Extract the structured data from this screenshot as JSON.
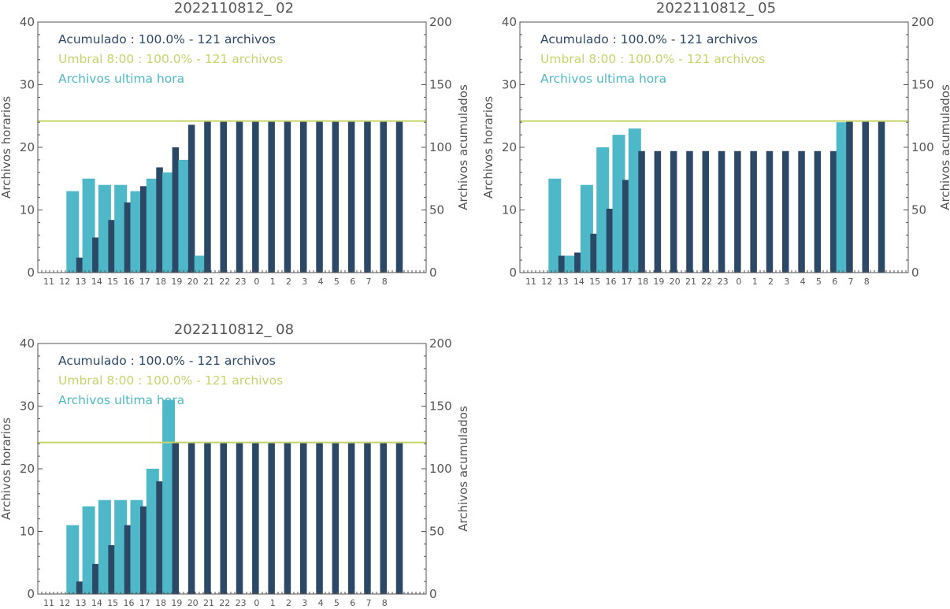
{
  "colors": {
    "hourly": "#4fb8c8",
    "accumulated": "#2b4866",
    "threshold": "#c8d46a",
    "axis": "#555555"
  },
  "chart_data": [
    {
      "type": "bar",
      "title": "2022110812_ 02",
      "ylabel_left": "Archivos horarios",
      "ylabel_right": "Archivos acumulados",
      "ylim_left": [
        0,
        40
      ],
      "ylim_right": [
        0,
        200
      ],
      "yticks_left": [
        "0",
        "10",
        "20",
        "30",
        "40"
      ],
      "yticks_right": [
        "0",
        "50",
        "100",
        "150",
        "200"
      ],
      "categories": [
        "11",
        "12",
        "13",
        "14",
        "15",
        "16",
        "17",
        "18",
        "19",
        "20",
        "21",
        "22",
        "23",
        "0",
        "1",
        "2",
        "3",
        "4",
        "5",
        "6",
        "7",
        "8"
      ],
      "legend": [
        {
          "label": "Acumulado : 100.0% - 121 archivos",
          "color": "accumulated"
        },
        {
          "label": "Umbral 8:00 : 100.0% - 121 archivos",
          "color": "threshold"
        },
        {
          "label": "Archivos ultima hora",
          "color": "hourly"
        }
      ],
      "threshold": 121,
      "series": [
        {
          "name": "Archivos ultima hora",
          "axis": "left",
          "values": [
            0,
            13,
            15,
            14,
            14,
            13,
            15,
            16,
            18,
            2.7,
            0,
            0,
            0,
            0,
            0,
            0,
            0,
            0,
            0,
            0,
            0,
            0
          ]
        },
        {
          "name": "Acumulado",
          "axis": "right",
          "values": [
            0,
            12,
            28,
            42,
            56,
            69,
            84,
            100,
            118,
            121,
            121,
            121,
            121,
            121,
            121,
            121,
            121,
            121,
            121,
            121,
            121,
            121
          ]
        }
      ]
    },
    {
      "type": "bar",
      "title": "2022110812_ 05",
      "ylabel_left": "Archivos horarios",
      "ylabel_right": "Archivos acumulados",
      "ylim_left": [
        0,
        40
      ],
      "ylim_right": [
        0,
        200
      ],
      "yticks_left": [
        "0",
        "10",
        "20",
        "30",
        "40"
      ],
      "yticks_right": [
        "0",
        "50",
        "100",
        "150",
        "200"
      ],
      "categories": [
        "11",
        "12",
        "13",
        "14",
        "15",
        "16",
        "17",
        "18",
        "19",
        "20",
        "21",
        "22",
        "23",
        "0",
        "1",
        "2",
        "3",
        "4",
        "5",
        "6",
        "7",
        "8"
      ],
      "legend": [
        {
          "label": "Acumulado : 100.0% - 121 archivos",
          "color": "accumulated"
        },
        {
          "label": "Umbral 8:00 : 100.0% - 121 archivos",
          "color": "threshold"
        },
        {
          "label": "Archivos ultima hora",
          "color": "hourly"
        }
      ],
      "threshold": 121,
      "series": [
        {
          "name": "Archivos ultima hora",
          "axis": "left",
          "values": [
            0,
            15,
            2.7,
            14,
            20,
            22,
            23,
            0,
            0,
            0,
            0,
            0,
            0,
            0,
            0,
            0,
            0,
            0,
            0,
            24,
            0,
            0
          ]
        },
        {
          "name": "Acumulado",
          "axis": "right",
          "values": [
            0,
            13.5,
            16,
            31,
            51,
            74,
            97,
            97,
            97,
            97,
            97,
            97,
            97,
            97,
            97,
            97,
            97,
            97,
            97,
            121,
            121,
            121
          ]
        }
      ]
    },
    {
      "type": "bar",
      "title": "2022110812_ 08",
      "ylabel_left": "Archivos horarios",
      "ylabel_right": "Archivos acumulados",
      "ylim_left": [
        0,
        40
      ],
      "ylim_right": [
        0,
        200
      ],
      "yticks_left": [
        "0",
        "10",
        "20",
        "30",
        "40"
      ],
      "yticks_right": [
        "0",
        "50",
        "100",
        "150",
        "200"
      ],
      "categories": [
        "11",
        "12",
        "13",
        "14",
        "15",
        "16",
        "17",
        "18",
        "19",
        "20",
        "21",
        "22",
        "23",
        "0",
        "1",
        "2",
        "3",
        "4",
        "5",
        "6",
        "7",
        "8"
      ],
      "legend": [
        {
          "label": "Acumulado : 100.0% - 121 archivos",
          "color": "accumulated"
        },
        {
          "label": "Umbral 8:00 : 100.0% - 121 archivos",
          "color": "threshold"
        },
        {
          "label": "Archivos ultima hora",
          "color": "hourly"
        }
      ],
      "threshold": 121,
      "series": [
        {
          "name": "Archivos ultima hora",
          "axis": "left",
          "values": [
            0,
            11,
            14,
            15,
            15,
            15,
            20,
            31,
            0,
            0,
            0,
            0,
            0,
            0,
            0,
            0,
            0,
            0,
            0,
            0,
            0,
            0
          ]
        },
        {
          "name": "Acumulado",
          "axis": "right",
          "values": [
            0,
            10,
            24,
            39,
            55,
            70,
            90,
            121,
            121,
            121,
            121,
            121,
            121,
            121,
            121,
            121,
            121,
            121,
            121,
            121,
            121,
            121
          ]
        }
      ]
    }
  ]
}
